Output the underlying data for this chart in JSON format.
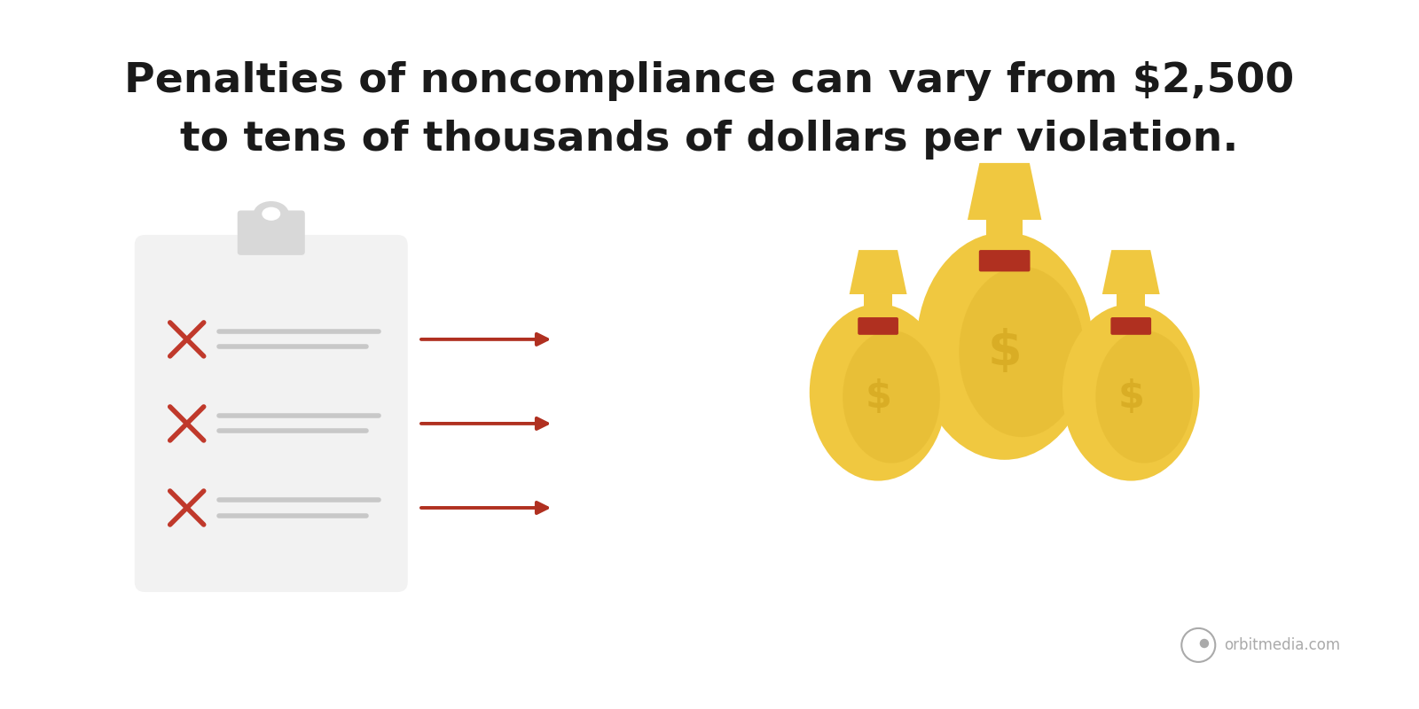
{
  "title_line1": "Penalties of noncompliance can vary from $2,500",
  "title_line2": "to tens of thousands of dollars per violation.",
  "title_fontsize": 34,
  "title_color": "#1a1a1a",
  "bg_color": "#ffffff",
  "clipboard_color": "#f2f2f2",
  "clip_holder_color": "#d8d8d8",
  "x_color": "#c0392b",
  "line_color": "#c8c8c8",
  "arrow_color": "#b03020",
  "bag_main_color": "#f0c840",
  "bag_dark_color": "#d4a820",
  "bag_tie_color": "#b03020",
  "bag_dollar_color": "#d4a820",
  "watermark_color": "#aaaaaa",
  "watermark_text": "orbitmedia.com"
}
